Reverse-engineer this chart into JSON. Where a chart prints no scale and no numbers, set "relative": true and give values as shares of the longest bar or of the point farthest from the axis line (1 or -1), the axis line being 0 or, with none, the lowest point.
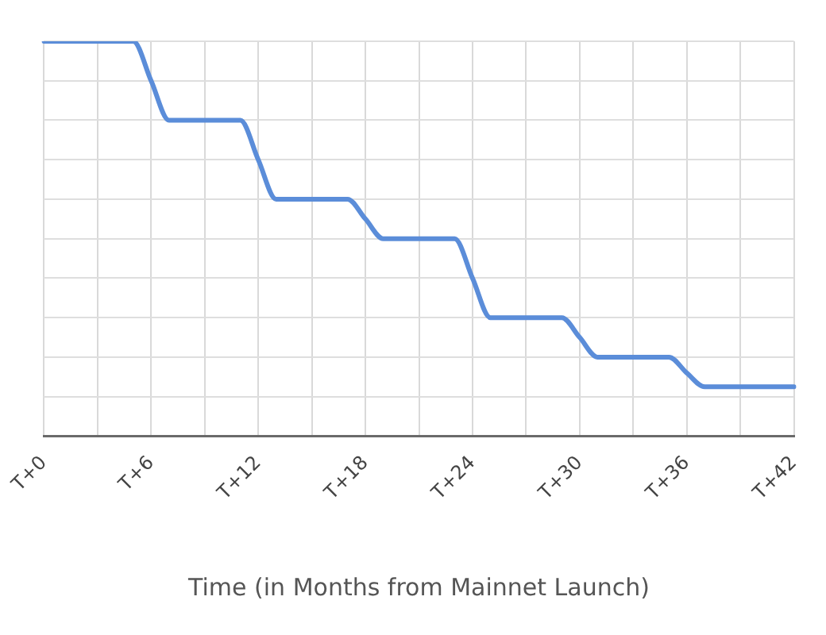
{
  "chart_data": {
    "type": "line",
    "xlabel": "Time (in Months from Mainnet Launch)",
    "categories": [
      "T+0",
      null,
      null,
      null,
      null,
      null,
      "T+6",
      null,
      null,
      null,
      null,
      null,
      "T+12",
      null,
      null,
      null,
      null,
      null,
      "T+18",
      null,
      null,
      null,
      null,
      null,
      "T+24",
      null,
      null,
      null,
      null,
      null,
      "T+30",
      null,
      null,
      null,
      null,
      null,
      "T+36",
      null,
      null,
      null,
      null,
      null,
      "T+42"
    ],
    "values": [
      1,
      1,
      1,
      1,
      1,
      1,
      0.9,
      0.8,
      0.8,
      0.8,
      0.8,
      0.8,
      0.7,
      0.6,
      0.6,
      0.6,
      0.6,
      0.6,
      0.55,
      0.5,
      0.5,
      0.5,
      0.5,
      0.5,
      0.4,
      0.3,
      0.3,
      0.3,
      0.3,
      0.3,
      0.25,
      0.2,
      0.2,
      0.2,
      0.2,
      0.2,
      0.16,
      0.125,
      0.125,
      0.125,
      0.125,
      0.125,
      0.125
    ],
    "color": "#5b8dd9",
    "relative": true,
    "grid": true
  }
}
